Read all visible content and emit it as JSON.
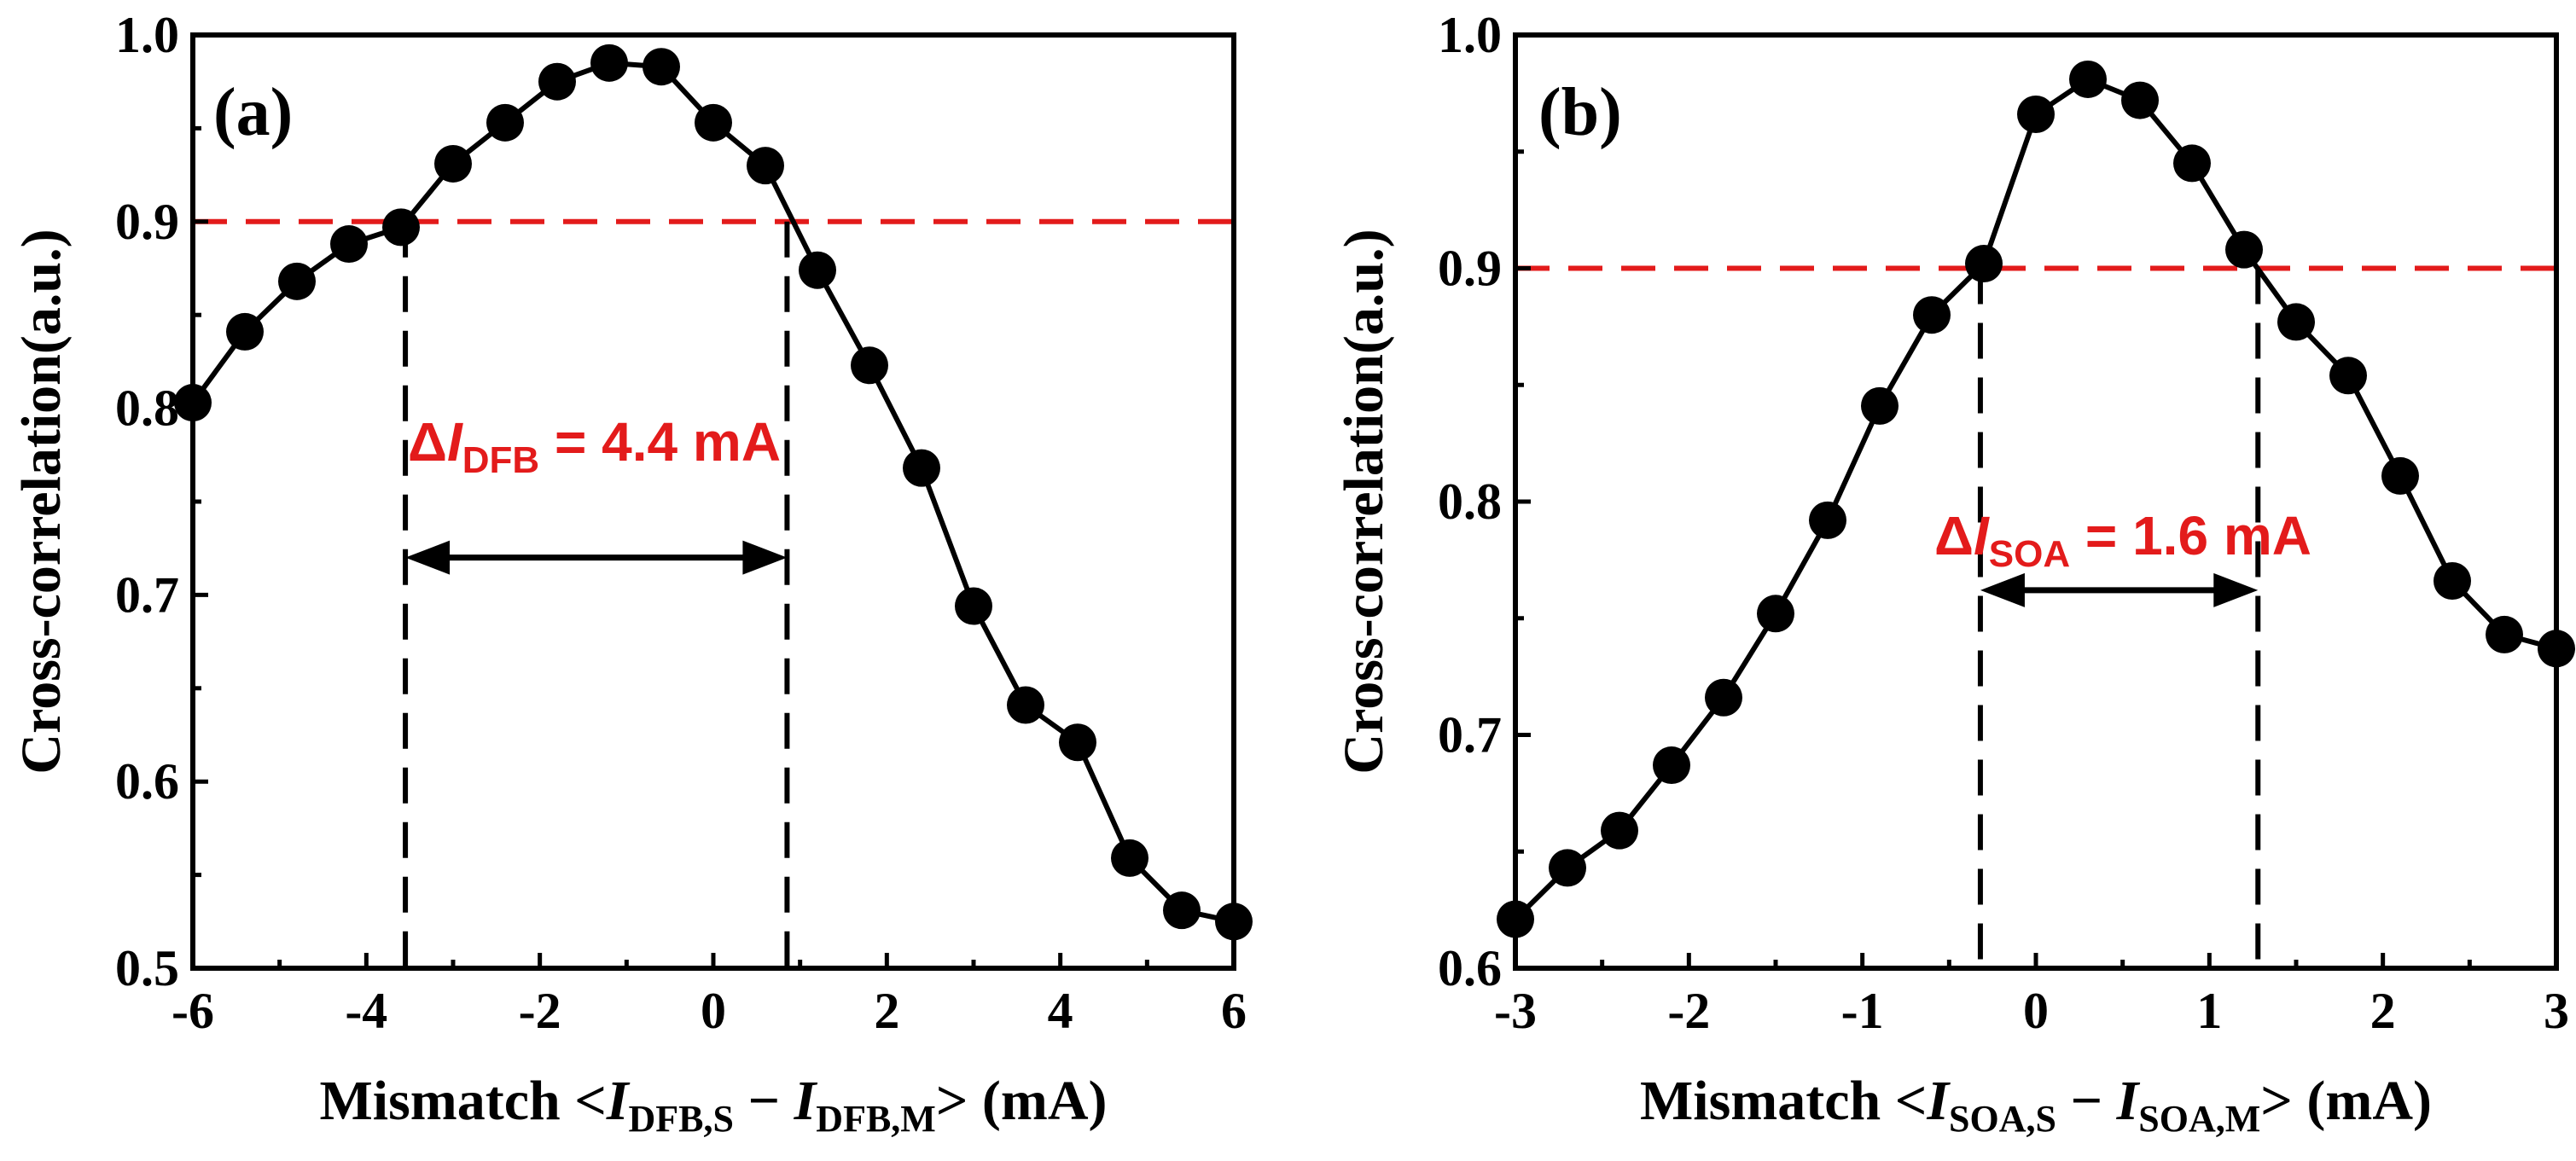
{
  "chart_data": [
    {
      "type": "scatter",
      "panel_label": "(a)",
      "xlabel": {
        "prefix": "Mismatch <",
        "i1": "I",
        "s1": "DFB,S",
        "mid": " − ",
        "i2": "I",
        "s2": "DFB,M",
        "suffix": "> (mA)"
      },
      "ylabel": "Cross-correlation(a.u.)",
      "xlim": [
        -6,
        6
      ],
      "ylim": [
        0.5,
        1.0
      ],
      "xticks": [
        -6,
        -4,
        -2,
        0,
        2,
        4,
        6
      ],
      "xtick_labels": [
        "-6",
        "-4",
        "-2",
        "0",
        "2",
        "4",
        "6"
      ],
      "yticks": [
        0.5,
        0.6,
        0.7,
        0.8,
        0.9,
        1.0
      ],
      "ytick_labels": [
        "0.5",
        "0.6",
        "0.7",
        "0.8",
        "0.9",
        "1.0"
      ],
      "x": [
        -6.0,
        -5.4,
        -4.8,
        -4.2,
        -3.6,
        -3.0,
        -2.4,
        -1.8,
        -1.2,
        -0.6,
        0.0,
        0.6,
        1.2,
        1.8,
        2.4,
        3.0,
        3.6,
        4.2,
        4.8,
        5.4,
        6.0
      ],
      "y": [
        0.803,
        0.841,
        0.868,
        0.888,
        0.897,
        0.931,
        0.953,
        0.975,
        0.985,
        0.983,
        0.953,
        0.93,
        0.874,
        0.823,
        0.768,
        0.694,
        0.641,
        0.621,
        0.559,
        0.531,
        0.525
      ],
      "threshold": 0.9,
      "bounds": [
        -3.55,
        0.85
      ],
      "arrow_y": 0.72,
      "annotation": {
        "delta": "Δ",
        "italic": "I",
        "sub": "DFB",
        "rest": " = 4.4 mA"
      }
    },
    {
      "type": "scatter",
      "panel_label": "(b)",
      "xlabel": {
        "prefix": "Mismatch <",
        "i1": "I",
        "s1": "SOA,S",
        "mid": " − ",
        "i2": "I",
        "s2": "SOA,M",
        "suffix": "> (mA)"
      },
      "ylabel": "Cross-correlation(a.u.)",
      "xlim": [
        -3,
        3
      ],
      "ylim": [
        0.6,
        1.0
      ],
      "xticks": [
        -3,
        -2,
        -1,
        0,
        1,
        2,
        3
      ],
      "xtick_labels": [
        "-3",
        "-2",
        "-1",
        "0",
        "1",
        "2",
        "3"
      ],
      "yticks": [
        0.6,
        0.7,
        0.8,
        0.9,
        1.0
      ],
      "ytick_labels": [
        "0.6",
        "0.7",
        "0.8",
        "0.9",
        "1.0"
      ],
      "x": [
        -3.0,
        -2.7,
        -2.4,
        -2.1,
        -1.8,
        -1.5,
        -1.2,
        -0.9,
        -0.6,
        -0.3,
        0.0,
        0.3,
        0.6,
        0.9,
        1.2,
        1.5,
        1.8,
        2.1,
        2.4,
        2.7,
        3.0
      ],
      "y": [
        0.621,
        0.643,
        0.659,
        0.687,
        0.716,
        0.752,
        0.792,
        0.841,
        0.88,
        0.902,
        0.966,
        0.981,
        0.972,
        0.945,
        0.908,
        0.877,
        0.854,
        0.811,
        0.766,
        0.743,
        0.737
      ],
      "threshold": 0.9,
      "bounds": [
        -0.32,
        1.28
      ],
      "arrow_y": 0.762,
      "annotation": {
        "delta": "Δ",
        "italic": "I",
        "sub": "SOA",
        "rest": " = 1.6 mA"
      }
    }
  ]
}
